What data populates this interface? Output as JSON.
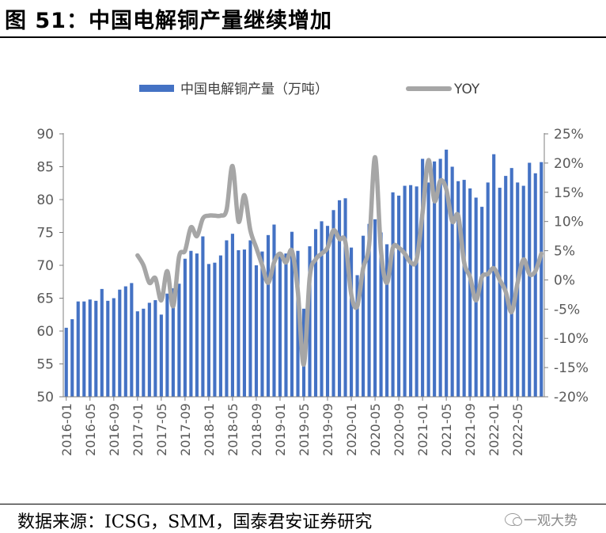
{
  "header": {
    "title": "图 51：中国电解铜产量继续增加"
  },
  "footer": {
    "source": "数据来源：ICSG，SMM，国泰君安证券研究",
    "watermark": "一观大势"
  },
  "chart_data": {
    "type": "bar+line",
    "title": "中国电解铜产量继续增加",
    "legend": {
      "placement": "top",
      "bar_label": "中国电解铜产量（万吨）",
      "line_label": "YOY"
    },
    "colors": {
      "bar": "#4472c4",
      "line": "#a6a6a6",
      "axis": "#7f7f7f",
      "text": "#595959"
    },
    "x_tick_labels": [
      "2016-01",
      "2016-05",
      "2016-09",
      "2017-01",
      "2017-05",
      "2017-09",
      "2018-01",
      "2018-05",
      "2018-09",
      "2019-01",
      "2019-05",
      "2019-09",
      "2020-01",
      "2020-05",
      "2020-09",
      "2021-01",
      "2021-05",
      "2021-09",
      "2022-01",
      "2022-05"
    ],
    "y_left": {
      "range": [
        50,
        90
      ],
      "ticks": [
        "50",
        "55",
        "60",
        "65",
        "70",
        "75",
        "80",
        "85",
        "90"
      ]
    },
    "y_right": {
      "range": [
        -20,
        25
      ],
      "ticks": [
        "-20%",
        "-15%",
        "-10%",
        "-5%",
        "0%",
        "5%",
        "10%",
        "15%",
        "20%",
        "25%"
      ]
    },
    "series": [
      {
        "name": "中国电解铜产量（万吨）",
        "axis": "left",
        "months": [
          "2016-01",
          "2016-02",
          "2016-03",
          "2016-04",
          "2016-05",
          "2016-06",
          "2016-07",
          "2016-08",
          "2016-09",
          "2016-10",
          "2016-11",
          "2016-12",
          "2017-01",
          "2017-02",
          "2017-03",
          "2017-04",
          "2017-05",
          "2017-06",
          "2017-07",
          "2017-08",
          "2017-09",
          "2017-10",
          "2017-11",
          "2017-12",
          "2018-01",
          "2018-02",
          "2018-03",
          "2018-04",
          "2018-05",
          "2018-06",
          "2018-07",
          "2018-08",
          "2018-09",
          "2018-10",
          "2018-11",
          "2018-12",
          "2019-01",
          "2019-02",
          "2019-03",
          "2019-04",
          "2019-05",
          "2019-06",
          "2019-07",
          "2019-08",
          "2019-09",
          "2019-10",
          "2019-11",
          "2019-12",
          "2020-01",
          "2020-02",
          "2020-03",
          "2020-04",
          "2020-05",
          "2020-06",
          "2020-07",
          "2020-08",
          "2020-09",
          "2020-10",
          "2020-11",
          "2020-12",
          "2021-01",
          "2021-02",
          "2021-03",
          "2021-04",
          "2021-05",
          "2021-06",
          "2021-07",
          "2021-08",
          "2021-09",
          "2021-10",
          "2021-11",
          "2021-12",
          "2022-01",
          "2022-02",
          "2022-03",
          "2022-04",
          "2022-05",
          "2022-06",
          "2022-07",
          "2022-08",
          "2022-09"
        ],
        "values": [
          60.5,
          61.8,
          64.5,
          64.5,
          64.8,
          64.6,
          66.4,
          64.6,
          65.0,
          66.3,
          66.8,
          67.3,
          63.0,
          63.4,
          64.3,
          64.7,
          62.5,
          65.7,
          66.5,
          67.2,
          71.0,
          72.2,
          71.8,
          74.4,
          70.2,
          70.4,
          71.5,
          73.8,
          74.8,
          72.3,
          72.4,
          73.8,
          70.0,
          72.1,
          74.6,
          76.2,
          71.4,
          71.8,
          75.1,
          72.2,
          63.4,
          72.9,
          75.5,
          76.7,
          76.0,
          78.4,
          79.9,
          80.2,
          72.7,
          68.5,
          74.5,
          76.3,
          77.0,
          75.0,
          73.2,
          81.1,
          80.6,
          82.1,
          82.2,
          82.0,
          86.2,
          82.6,
          85.8,
          86.2,
          87.6,
          85.0,
          82.8,
          83.0,
          81.7,
          80.3,
          78.9,
          82.6,
          86.9,
          81.8,
          83.6,
          84.8,
          82.6,
          82.1,
          85.6,
          84.0,
          85.7
        ]
      },
      {
        "name": "YOY",
        "axis": "right",
        "months": [
          "2017-01",
          "2017-02",
          "2017-03",
          "2017-04",
          "2017-05",
          "2017-06",
          "2017-07",
          "2017-08",
          "2017-09",
          "2017-10",
          "2017-11",
          "2017-12",
          "2018-01",
          "2018-02",
          "2018-03",
          "2018-04",
          "2018-05",
          "2018-06",
          "2018-07",
          "2018-08",
          "2018-09",
          "2018-10",
          "2018-11",
          "2018-12",
          "2019-01",
          "2019-02",
          "2019-03",
          "2019-04",
          "2019-05",
          "2019-06",
          "2019-07",
          "2019-08",
          "2019-09",
          "2019-10",
          "2019-11",
          "2019-12",
          "2020-01",
          "2020-02",
          "2020-03",
          "2020-04",
          "2020-05",
          "2020-06",
          "2020-07",
          "2020-08",
          "2020-09",
          "2020-10",
          "2020-11",
          "2020-12",
          "2021-01",
          "2021-02",
          "2021-03",
          "2021-04",
          "2021-05",
          "2021-06",
          "2021-07",
          "2021-08",
          "2021-09",
          "2021-10",
          "2021-11",
          "2021-12",
          "2022-01",
          "2022-02",
          "2022-03",
          "2022-04",
          "2022-05",
          "2022-06",
          "2022-07",
          "2022-08",
          "2022-09"
        ],
        "values": [
          4.2,
          2.5,
          -0.5,
          0.3,
          -3.5,
          1.5,
          -4.5,
          4.0,
          5.0,
          9.0,
          7.5,
          10.5,
          11.0,
          11.0,
          11.0,
          12.0,
          19.5,
          10.0,
          14.5,
          8.5,
          5.5,
          2.5,
          -0.5,
          3.0,
          4.5,
          3.0,
          5.0,
          -2.0,
          -14.5,
          0.5,
          3.5,
          4.5,
          5.5,
          8.5,
          7.0,
          6.5,
          -2.5,
          -4.5,
          2.0,
          6.0,
          21.0,
          5.0,
          -0.5,
          5.5,
          5.5,
          4.5,
          3.0,
          3.5,
          11.5,
          20.5,
          13.5,
          17.0,
          15.5,
          10.0,
          11.0,
          3.0,
          0.5,
          -3.5,
          0.5,
          1.0,
          2.0,
          0.0,
          -2.0,
          -5.5,
          -0.5,
          3.5,
          1.0,
          1.5,
          4.5
        ]
      }
    ]
  }
}
